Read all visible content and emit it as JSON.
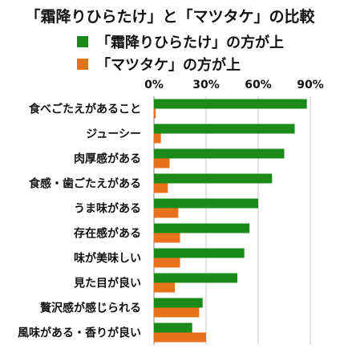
{
  "chart_data": {
    "type": "bar",
    "orientation": "horizontal",
    "title": "「霜降りひらたけ」と「マツタケ」の比較",
    "categories": [
      "食べごたえがあること",
      "ジューシー",
      "肉厚感がある",
      "食感・歯ごたえがある",
      "うま味がある",
      "存在感がある",
      "味が美味しい",
      "見た目が良い",
      "贅沢感が感じられる",
      "風味がある・香りが良い"
    ],
    "series": [
      {
        "name": "「霜降りひらたけ」の方が上",
        "color": "#1a8a1a",
        "values": [
          88,
          81,
          75,
          68,
          60,
          55,
          52,
          48,
          28,
          22
        ]
      },
      {
        "name": "「マツタケ」の方が上",
        "color": "#e8711c",
        "values": [
          1,
          4,
          9,
          8,
          14,
          15,
          15,
          12,
          26,
          30
        ]
      }
    ],
    "xticks": [
      "0%",
      "30%",
      "60%",
      "90%"
    ],
    "xlim": [
      0,
      90
    ],
    "grid": true,
    "legend_position": "top"
  }
}
